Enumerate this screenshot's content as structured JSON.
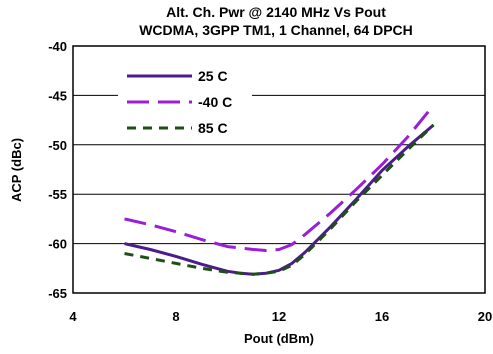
{
  "chart_data": {
    "type": "line",
    "title_line1": "Alt. Ch. Pwr @ 2140  MHz Vs Pout",
    "title_line2": "WCDMA, 3GPP TM1, 1 Channel, 64 DPCH",
    "xlabel": "Pout (dBm)",
    "ylabel": "ACP (dBc)",
    "xlim": [
      4,
      20
    ],
    "ylim": [
      -65,
      -40
    ],
    "xticks": [
      4,
      8,
      12,
      16,
      20
    ],
    "yticks": [
      -40,
      -45,
      -50,
      -55,
      -60,
      -65
    ],
    "grid": "horizontal",
    "legend_position": "top-left",
    "series": [
      {
        "name": "25 C",
        "color": "#4b1c8c",
        "style": "solid",
        "x": [
          6,
          7,
          8,
          9,
          10,
          10.5,
          11,
          11.5,
          12,
          12.5,
          13,
          14,
          15,
          16,
          17,
          18
        ],
        "y": [
          -60,
          -60.6,
          -61.3,
          -62.1,
          -62.8,
          -63.0,
          -63.1,
          -63.0,
          -62.7,
          -62.0,
          -60.9,
          -58.3,
          -55.5,
          -52.6,
          -50.2,
          -48.0
        ]
      },
      {
        "name": "-40 C",
        "color": "#9a1ed6",
        "style": "dashed",
        "x": [
          6,
          7,
          8,
          9,
          10,
          11,
          11.5,
          12,
          12.5,
          13,
          14,
          15,
          16,
          17,
          18
        ],
        "y": [
          -57.5,
          -58.1,
          -58.8,
          -59.6,
          -60.3,
          -60.6,
          -60.7,
          -60.6,
          -60.1,
          -59.1,
          -56.9,
          -54.5,
          -52.0,
          -49.2,
          -46.0
        ]
      },
      {
        "name": "85 C",
        "color": "#1d4f16",
        "style": "short-dashed",
        "x": [
          6,
          7,
          8,
          9,
          10,
          10.5,
          11,
          11.5,
          12,
          12.5,
          13,
          14,
          15,
          16,
          17,
          18
        ],
        "y": [
          -61.0,
          -61.5,
          -62.0,
          -62.5,
          -62.9,
          -63.0,
          -63.1,
          -63.0,
          -62.8,
          -62.2,
          -61.1,
          -58.5,
          -55.7,
          -53.1,
          -50.5,
          -48.0
        ]
      }
    ]
  }
}
